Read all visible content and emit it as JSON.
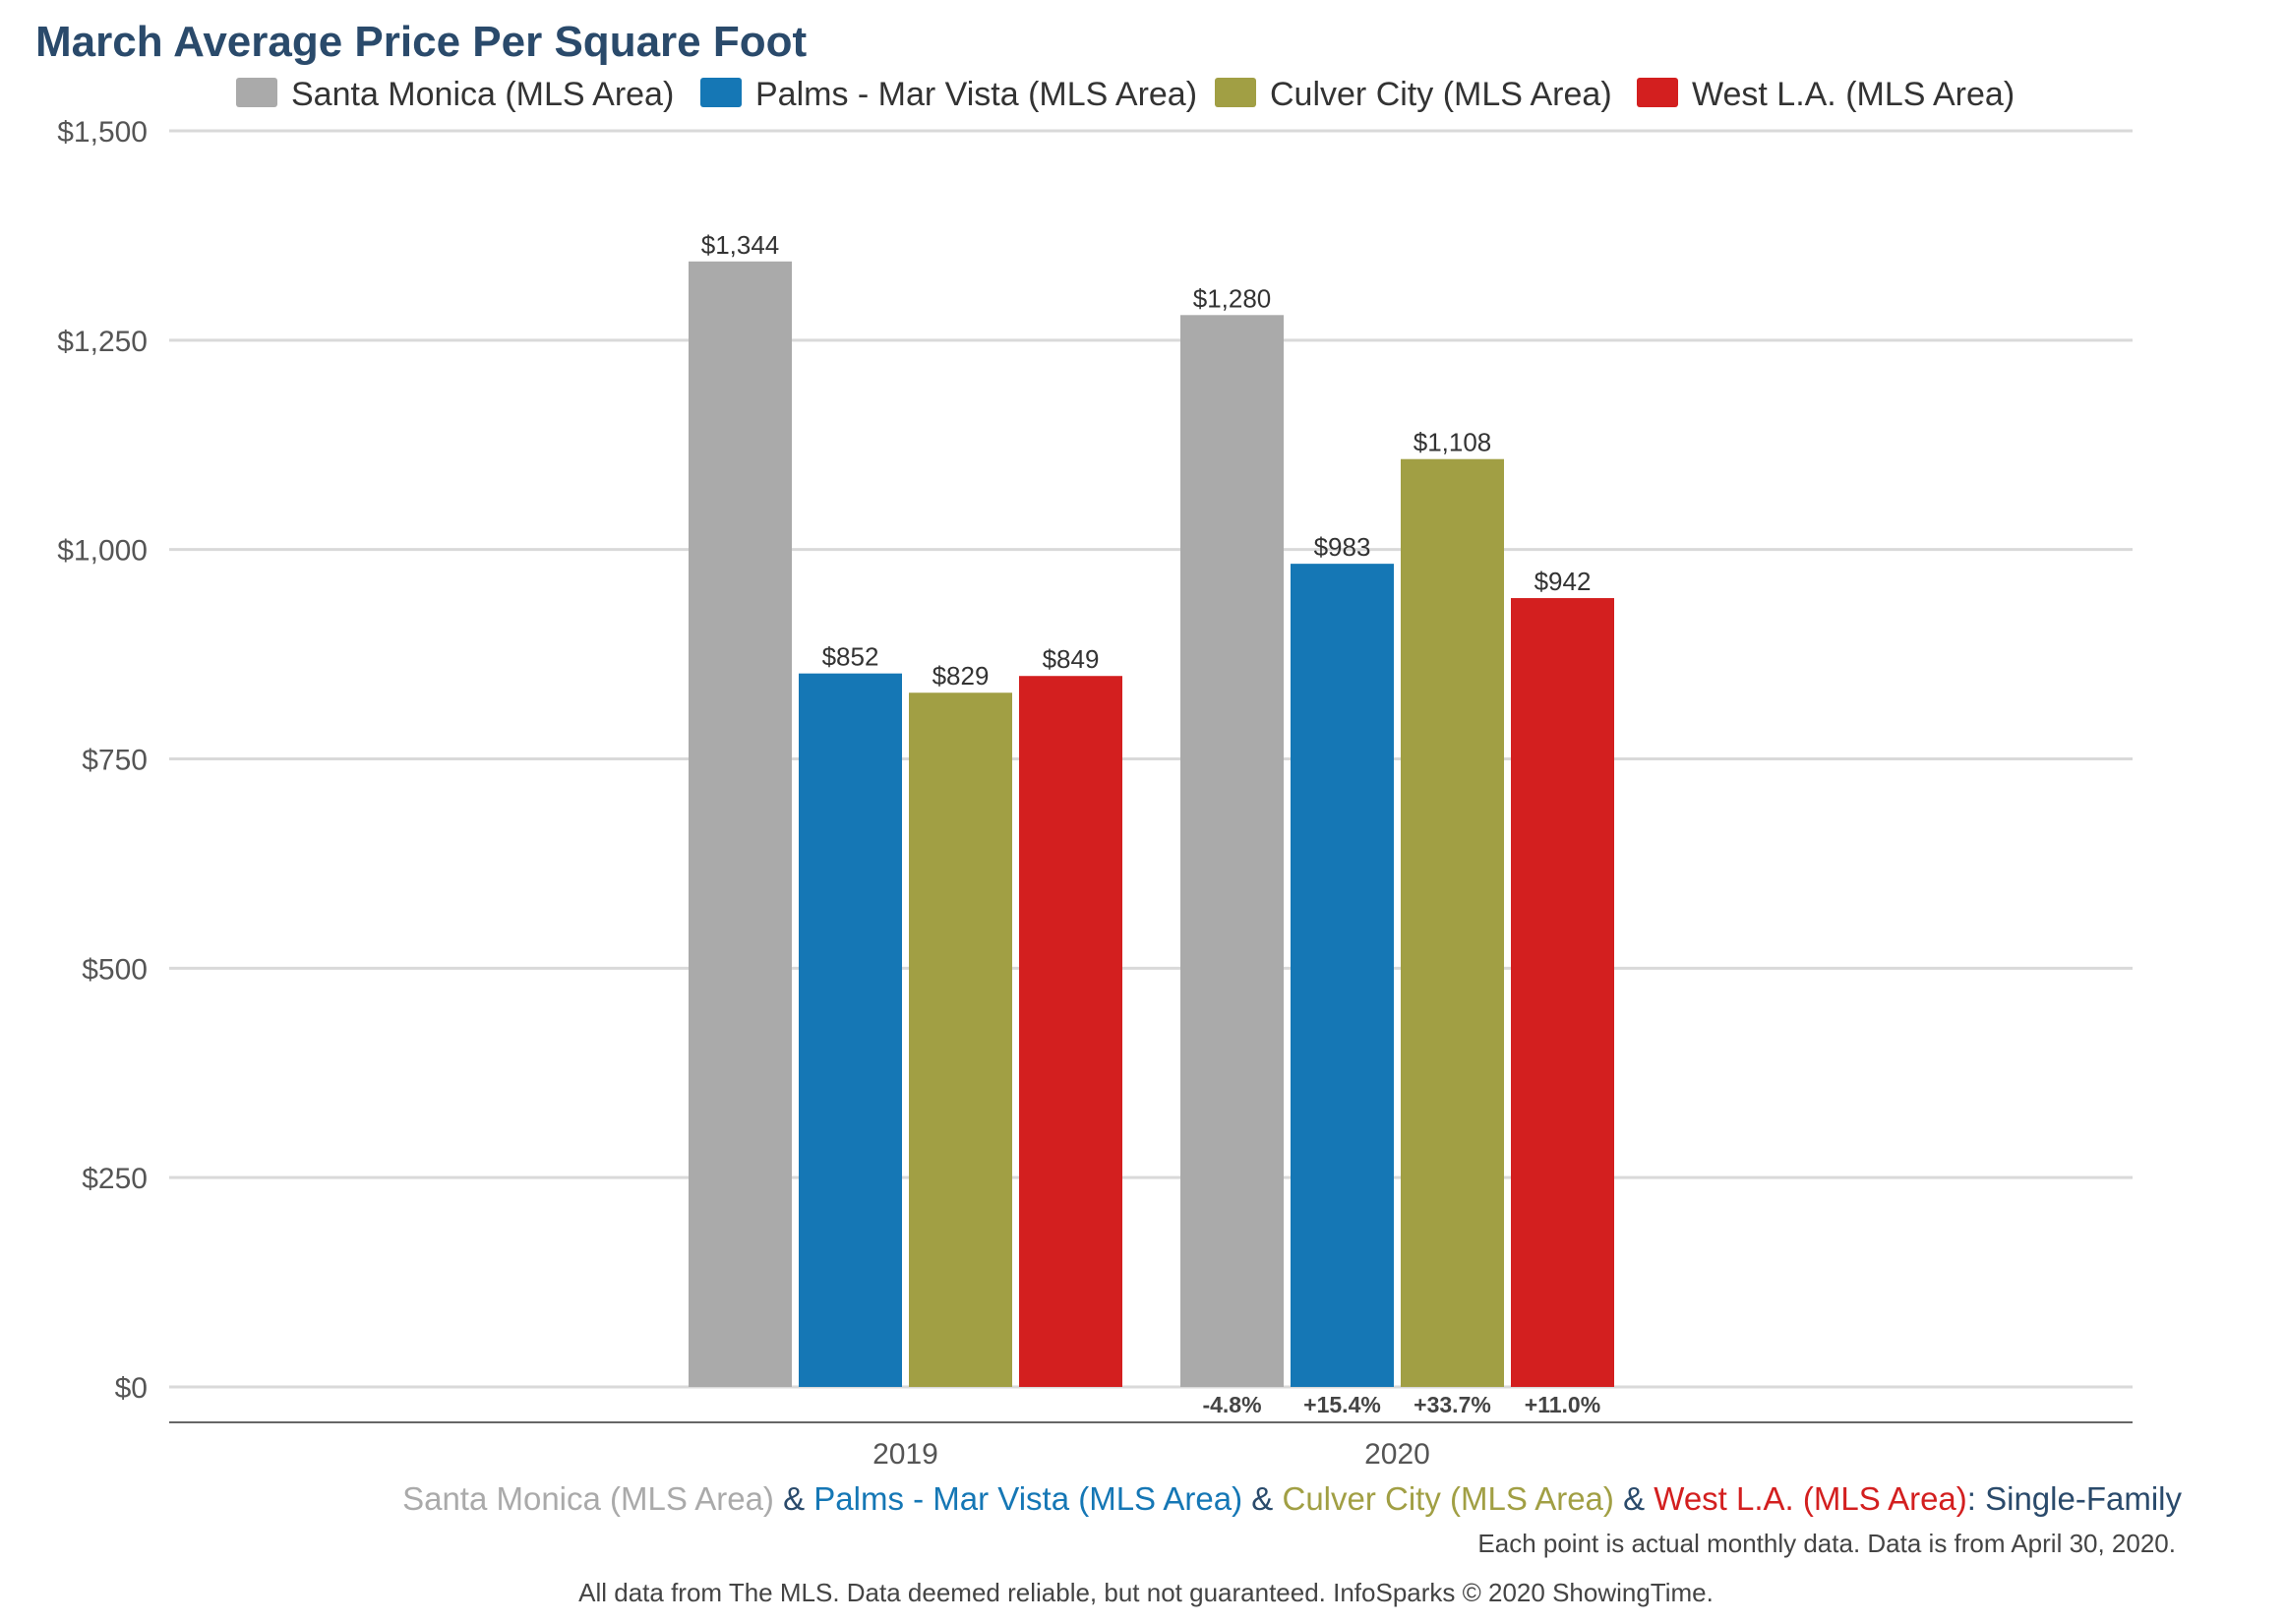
{
  "chart_data": {
    "type": "bar",
    "title": "March Average Price Per Square Foot",
    "categories": [
      "2019",
      "2020"
    ],
    "series": [
      {
        "name": "Santa Monica (MLS Area)",
        "color": "#aaaaaa",
        "values": [
          1344,
          1280
        ],
        "labels": [
          "$1,344",
          "$1,280"
        ]
      },
      {
        "name": "Palms - Mar Vista (MLS Area)",
        "color": "#1577b5",
        "values": [
          852,
          983
        ],
        "labels": [
          "$852",
          "$983"
        ]
      },
      {
        "name": "Culver City (MLS Area)",
        "color": "#a19f44",
        "values": [
          829,
          1108
        ],
        "labels": [
          "$829",
          "$1,108"
        ]
      },
      {
        "name": "West L.A. (MLS Area)",
        "color": "#d31f1f",
        "values": [
          849,
          942
        ],
        "labels": [
          "$849",
          "$942"
        ]
      }
    ],
    "ylim": [
      0,
      1500
    ],
    "yticks": [
      0,
      250,
      500,
      750,
      1000,
      1250,
      1500
    ],
    "ytick_labels": [
      "$0",
      "$250",
      "$500",
      "$750",
      "$1,000",
      "$1,250",
      "$1,500"
    ],
    "change_labels": [
      "-4.8%",
      "+15.4%",
      "+33.7%",
      "+11.0%"
    ],
    "grid": true,
    "legend_position": "top"
  },
  "subtitle_parts": [
    {
      "text": "Santa Monica (MLS Area)",
      "color": "#aaaaaa"
    },
    {
      "text": " & ",
      "color": "#2a4a6b"
    },
    {
      "text": "Palms - Mar Vista (MLS Area)",
      "color": "#1577b5"
    },
    {
      "text": " & ",
      "color": "#2a4a6b"
    },
    {
      "text": "Culver City (MLS Area)",
      "color": "#a19f44"
    },
    {
      "text": " & ",
      "color": "#2a4a6b"
    },
    {
      "text": "West L.A. (MLS Area)",
      "color": "#d31f1f"
    },
    {
      "text": ": Single-Family",
      "color": "#2a4a6b"
    }
  ],
  "note": "Each point is actual monthly data. Data is from April 30, 2020.",
  "footer": "All data from The MLS. Data deemed reliable, but not guaranteed. InfoSparks © 2020 ShowingTime."
}
